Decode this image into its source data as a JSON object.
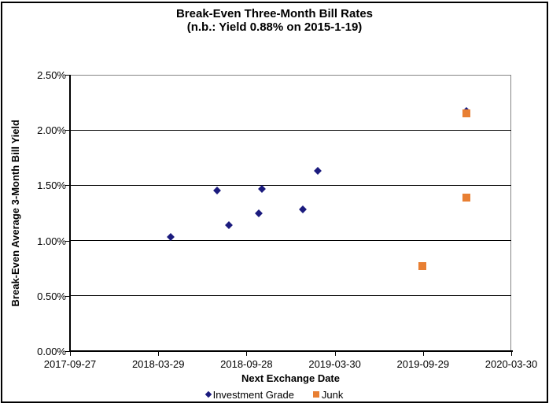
{
  "window": {
    "background": "#FFFFFF",
    "frame_border_color": "#000000",
    "plot_border_color": "#858585",
    "gridline_color": "#000000"
  },
  "chart_data": {
    "type": "scatter",
    "title": "Break-Even Three-Month Bill Rates",
    "subtitle": "(n.b.: Yield 0.88% on 2015-1-19)",
    "xlabel": "Next Exchange Date",
    "ylabel": "Break-Even Average 3-Month Bill Yield",
    "grid": "horizontal-major",
    "legend_position": "bottom",
    "x_range": [
      "2017-09-27",
      "2020-03-30"
    ],
    "y_range_pct": [
      0,
      2.5
    ],
    "x_ticks": [
      "2017-09-27",
      "2018-03-29",
      "2018-09-28",
      "2019-03-30",
      "2019-09-29",
      "2020-03-30"
    ],
    "y_ticks": [
      {
        "label": "0.00%",
        "value": 0
      },
      {
        "label": "0.50%",
        "value": 0.5
      },
      {
        "label": "1.00%",
        "value": 1
      },
      {
        "label": "1.50%",
        "value": 1.5
      },
      {
        "label": "2.00%",
        "value": 2
      },
      {
        "label": "2.50%",
        "value": 2.5
      }
    ],
    "series": [
      {
        "name": "Investment Grade",
        "marker": "diamond",
        "color": "#1B1B7E",
        "points": [
          {
            "date": "2018-04-24",
            "value_pct": 1.03
          },
          {
            "date": "2018-07-29",
            "value_pct": 1.45
          },
          {
            "date": "2018-08-23",
            "value_pct": 1.14
          },
          {
            "date": "2018-10-23",
            "value_pct": 1.25
          },
          {
            "date": "2018-10-30",
            "value_pct": 1.47
          },
          {
            "date": "2019-01-23",
            "value_pct": 1.28
          },
          {
            "date": "2019-02-23",
            "value_pct": 1.63
          },
          {
            "date": "2019-12-28",
            "value_pct": 2.17
          }
        ]
      },
      {
        "name": "Junk",
        "marker": "square",
        "color": "#E87F33",
        "points": [
          {
            "date": "2019-09-28",
            "value_pct": 0.77
          },
          {
            "date": "2019-12-28",
            "value_pct": 2.15
          },
          {
            "date": "2019-12-28",
            "value_pct": 1.39
          }
        ]
      }
    ]
  }
}
